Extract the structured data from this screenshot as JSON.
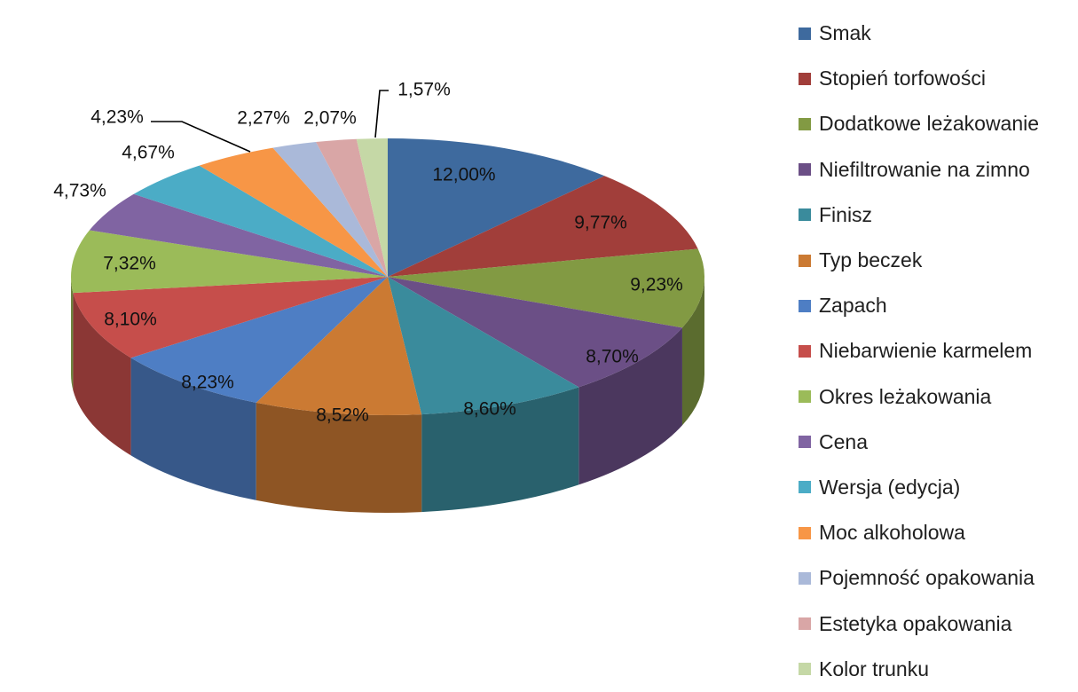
{
  "chart_data": {
    "type": "pie",
    "title": "",
    "legend_position": "right",
    "categories": [
      "Smak",
      "Stopień torfowości",
      "Dodatkowe leżakowanie",
      "Niefiltrowanie na zimno",
      "Finisz",
      "Typ beczek",
      "Zapach",
      "Niebarwienie karmelem",
      "Okres leżakowania",
      "Cena",
      "Wersja (edycja)",
      "Moc alkoholowa",
      "Pojemność opakowania",
      "Estetyka opakowania",
      "Kolor trunku"
    ],
    "values": [
      12.0,
      9.77,
      9.23,
      8.7,
      8.6,
      8.52,
      8.23,
      8.1,
      7.32,
      4.73,
      4.67,
      4.23,
      2.27,
      2.07,
      1.57
    ],
    "labels": [
      "12,00%",
      "9,77%",
      "9,23%",
      "8,70%",
      "8,60%",
      "8,52%",
      "8,23%",
      "8,10%",
      "7,32%",
      "4,73%",
      "4,67%",
      "4,23%",
      "2,27%",
      "2,07%",
      "1,57%"
    ],
    "colors": [
      "#3E6A9E",
      "#A13E3A",
      "#829A43",
      "#6B4F86",
      "#3A8B9C",
      "#CB7A33",
      "#4E7EC4",
      "#C64E4B",
      "#9BBB59",
      "#8064A2",
      "#4BACC6",
      "#F79646",
      "#AAB9D9",
      "#D9A6A6",
      "#C5D8A6"
    ]
  }
}
